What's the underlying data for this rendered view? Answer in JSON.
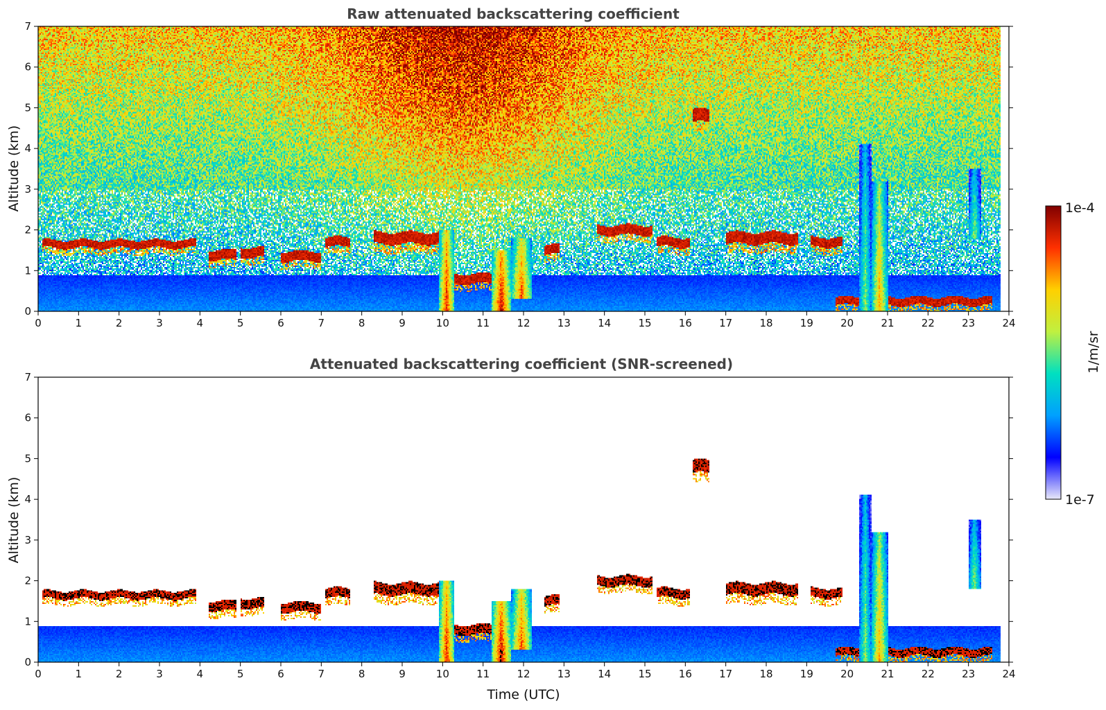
{
  "chart_data": [
    {
      "type": "heatmap",
      "title": "Raw attenuated backscattering coefficient",
      "xlabel": "",
      "ylabel": "Altitude (km)",
      "xlim": [
        0,
        24
      ],
      "ylim": [
        0,
        7
      ],
      "xticks": [
        "0",
        "1",
        "2",
        "3",
        "4",
        "5",
        "6",
        "7",
        "8",
        "9",
        "10",
        "11",
        "12",
        "13",
        "14",
        "15",
        "16",
        "17",
        "18",
        "19",
        "20",
        "21",
        "22",
        "23",
        "24"
      ],
      "yticks": [
        "0",
        "1",
        "2",
        "3",
        "4",
        "5",
        "6",
        "7"
      ],
      "background": "noisy",
      "features": [
        {
          "kind": "aerosol_layer",
          "t0": 0,
          "t1": 23.8,
          "z0": 0,
          "z1": 0.35,
          "level": 0.5
        },
        {
          "kind": "boundary_layer",
          "t0": 0,
          "t1": 23.8,
          "z0": 0,
          "z1": 0.9,
          "level": 0.27
        },
        {
          "kind": "cloud_base",
          "t0": 0.1,
          "t1": 3.9,
          "z": 1.65,
          "thick": 0.1
        },
        {
          "kind": "cloud_base",
          "t0": 4.2,
          "t1": 4.9,
          "z": 1.38,
          "thick": 0.12
        },
        {
          "kind": "cloud_base",
          "t0": 5.0,
          "t1": 5.6,
          "z": 1.45,
          "thick": 0.12
        },
        {
          "kind": "cloud_base",
          "t0": 6.0,
          "t1": 7.0,
          "z": 1.35,
          "thick": 0.12
        },
        {
          "kind": "cloud_base",
          "t0": 7.1,
          "t1": 7.7,
          "z": 1.7,
          "thick": 0.12
        },
        {
          "kind": "cloud_base",
          "t0": 8.3,
          "t1": 9.9,
          "z": 1.8,
          "thick": 0.15
        },
        {
          "kind": "cloud_base",
          "t0": 10.3,
          "t1": 11.6,
          "z": 0.8,
          "thick": 0.12
        },
        {
          "kind": "cloud_base",
          "t0": 12.5,
          "t1": 12.9,
          "z": 1.5,
          "thick": 0.12
        },
        {
          "kind": "cloud_base",
          "t0": 13.8,
          "t1": 15.2,
          "z": 2.0,
          "thick": 0.12
        },
        {
          "kind": "cloud_base",
          "t0": 15.3,
          "t1": 16.1,
          "z": 1.7,
          "thick": 0.12
        },
        {
          "kind": "cloud_base",
          "t0": 16.2,
          "t1": 16.6,
          "z": 4.8,
          "thick": 0.16
        },
        {
          "kind": "cloud_base",
          "t0": 17.0,
          "t1": 18.8,
          "z": 1.8,
          "thick": 0.15
        },
        {
          "kind": "cloud_base",
          "t0": 19.1,
          "t1": 19.9,
          "z": 1.7,
          "thick": 0.12
        },
        {
          "kind": "cloud_base",
          "t0": 19.7,
          "t1": 23.6,
          "z": 0.25,
          "thick": 0.1
        },
        {
          "kind": "convective_column",
          "t0": 9.9,
          "t1": 10.3,
          "z0": 0,
          "z1": 2.0,
          "level": 0.9
        },
        {
          "kind": "convective_column",
          "t0": 11.2,
          "t1": 11.7,
          "z0": 0,
          "z1": 1.5,
          "level": 0.95
        },
        {
          "kind": "convective_column",
          "t0": 11.7,
          "t1": 12.2,
          "z0": 0.3,
          "z1": 1.8,
          "level": 0.85
        },
        {
          "kind": "convective_column",
          "t0": 20.3,
          "t1": 20.6,
          "z0": 0,
          "z1": 4.1,
          "level": 0.55
        },
        {
          "kind": "convective_column",
          "t0": 20.6,
          "t1": 21.0,
          "z0": 0,
          "z1": 3.2,
          "level": 0.75
        },
        {
          "kind": "convective_column",
          "t0": 23.0,
          "t1": 23.3,
          "z0": 1.8,
          "z1": 3.5,
          "level": 0.55
        }
      ]
    },
    {
      "type": "heatmap",
      "title": "Attenuated backscattering coefficient (SNR-screened)",
      "xlabel": "Time (UTC)",
      "ylabel": "Altitude (km)",
      "xlim": [
        0,
        24
      ],
      "ylim": [
        0,
        7
      ],
      "xticks": [
        "0",
        "1",
        "2",
        "3",
        "4",
        "5",
        "6",
        "7",
        "8",
        "9",
        "10",
        "11",
        "12",
        "13",
        "14",
        "15",
        "16",
        "17",
        "18",
        "19",
        "20",
        "21",
        "22",
        "23",
        "24"
      ],
      "yticks": [
        "0",
        "1",
        "2",
        "3",
        "4",
        "5",
        "6",
        "7"
      ],
      "background": "screened",
      "features": [
        {
          "kind": "aerosol_layer",
          "t0": 0,
          "t1": 23.8,
          "z0": 0,
          "z1": 0.35,
          "level": 0.5
        },
        {
          "kind": "boundary_layer",
          "t0": 0,
          "t1": 23.8,
          "z0": 0,
          "z1": 0.9,
          "level": 0.27
        },
        {
          "kind": "cloud_base",
          "t0": 0.1,
          "t1": 3.9,
          "z": 1.65,
          "thick": 0.1
        },
        {
          "kind": "cloud_base",
          "t0": 4.2,
          "t1": 4.9,
          "z": 1.38,
          "thick": 0.12
        },
        {
          "kind": "cloud_base",
          "t0": 5.0,
          "t1": 5.6,
          "z": 1.45,
          "thick": 0.12
        },
        {
          "kind": "cloud_base",
          "t0": 6.0,
          "t1": 7.0,
          "z": 1.35,
          "thick": 0.12
        },
        {
          "kind": "cloud_base",
          "t0": 7.1,
          "t1": 7.7,
          "z": 1.7,
          "thick": 0.12
        },
        {
          "kind": "cloud_base",
          "t0": 8.3,
          "t1": 9.9,
          "z": 1.8,
          "thick": 0.15
        },
        {
          "kind": "cloud_base",
          "t0": 10.3,
          "t1": 11.6,
          "z": 0.8,
          "thick": 0.12
        },
        {
          "kind": "cloud_base",
          "t0": 12.5,
          "t1": 12.9,
          "z": 1.5,
          "thick": 0.12
        },
        {
          "kind": "cloud_base",
          "t0": 13.8,
          "t1": 15.2,
          "z": 2.0,
          "thick": 0.12
        },
        {
          "kind": "cloud_base",
          "t0": 15.3,
          "t1": 16.1,
          "z": 1.7,
          "thick": 0.12
        },
        {
          "kind": "cloud_base",
          "t0": 16.2,
          "t1": 16.6,
          "z": 4.8,
          "thick": 0.16
        },
        {
          "kind": "cloud_base",
          "t0": 17.0,
          "t1": 18.8,
          "z": 1.8,
          "thick": 0.15
        },
        {
          "kind": "cloud_base",
          "t0": 19.1,
          "t1": 19.9,
          "z": 1.7,
          "thick": 0.12
        },
        {
          "kind": "cloud_base",
          "t0": 19.7,
          "t1": 23.6,
          "z": 0.25,
          "thick": 0.1
        },
        {
          "kind": "convective_column",
          "t0": 9.9,
          "t1": 10.3,
          "z0": 0,
          "z1": 2.0,
          "level": 0.9
        },
        {
          "kind": "convective_column",
          "t0": 11.2,
          "t1": 11.7,
          "z0": 0,
          "z1": 1.5,
          "level": 0.95
        },
        {
          "kind": "convective_column",
          "t0": 11.7,
          "t1": 12.2,
          "z0": 0.3,
          "z1": 1.8,
          "level": 0.85
        },
        {
          "kind": "convective_column",
          "t0": 20.3,
          "t1": 20.6,
          "z0": 0,
          "z1": 4.1,
          "level": 0.55
        },
        {
          "kind": "convective_column",
          "t0": 20.6,
          "t1": 21.0,
          "z0": 0,
          "z1": 3.2,
          "level": 0.75
        },
        {
          "kind": "convective_column",
          "t0": 23.0,
          "t1": 23.3,
          "z0": 1.8,
          "z1": 3.5,
          "level": 0.55
        }
      ]
    }
  ],
  "colorbar": {
    "label": "1/m/sr",
    "max_label": "1e-4",
    "min_label": "1e-7",
    "colormap": "jet",
    "colors": [
      "#e8e8f8",
      "#0000ff",
      "#00a0ff",
      "#00e0c0",
      "#c0f040",
      "#ffd000",
      "#ff3000",
      "#800000"
    ]
  }
}
